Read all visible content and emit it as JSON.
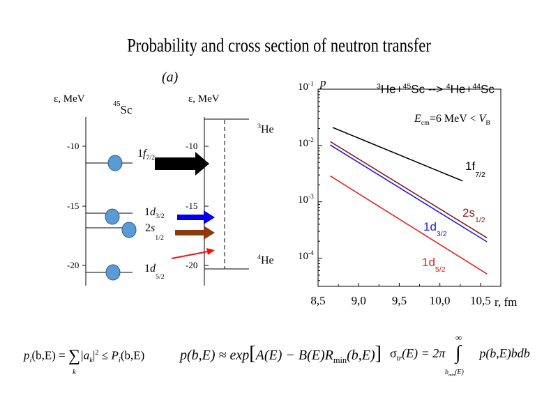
{
  "title": "Probability and cross section of neutron transfer",
  "panel_label": "(a)",
  "left_diagram": {
    "axis_label": "ε, MeV",
    "nucleus_pre": "45",
    "nucleus": "Sc",
    "ticks": [
      "-10",
      "-15",
      "-20"
    ]
  },
  "right_diagram": {
    "axis_label": "ε, MeV",
    "ticks": [
      "-10",
      "-15",
      "-20"
    ],
    "top_level_pre": "3",
    "top_level": "He",
    "bottom_level_pre": "4",
    "bottom_level": "He"
  },
  "levels": [
    {
      "pre": "1",
      "letter": "f",
      "sub": "7/2",
      "arrow_color": "#000000"
    },
    {
      "pre": "1",
      "letter": "d",
      "sub": "3/2",
      "arrow_color": "#0000ee"
    },
    {
      "pre": "2",
      "letter": "s",
      "sub": "1/2",
      "arrow_color": "#8b3a0e"
    },
    {
      "pre": "1",
      "letter": "d",
      "sub": "5/2",
      "arrow_color": "#ee1111"
    }
  ],
  "colors": {
    "ball": "#5b9bd5",
    "f72": "#000000",
    "s12": "#8b1a1a",
    "d32": "#1a1ae6",
    "d52": "#e62020"
  },
  "chart_data": {
    "type": "line",
    "xlabel": "r, fm",
    "ylabel": "p",
    "yscale": "log",
    "xlim": [
      8.5,
      10.75
    ],
    "ylim_log10": [
      -4.5,
      -1
    ],
    "x_tick_labels": [
      "8,5",
      "9,0",
      "9,5",
      "10,0",
      "10,5"
    ],
    "x_ticks": [
      8.5,
      9.0,
      9.5,
      10.0,
      10.5
    ],
    "y_ticks": [
      {
        "base": "10",
        "exp": "-1",
        "log10": -1
      },
      {
        "base": "10",
        "exp": "-2",
        "log10": -2
      },
      {
        "base": "10",
        "exp": "-3",
        "log10": -3
      },
      {
        "base": "10",
        "exp": "-4",
        "log10": -4
      }
    ],
    "reaction": {
      "pre1": "3",
      "a": "He+",
      "pre2": "45",
      "b": "Sc --> ",
      "pre3": "4",
      "c": "He+",
      "pre4": "44",
      "d": "Sc"
    },
    "energy_annotation": {
      "E": "E",
      "sub": "cm",
      "mid": "=6 MeV < ",
      "V": "V",
      "vsub": "B"
    },
    "series": [
      {
        "name": "1f7/2",
        "label": "1f",
        "label_sub": "7/2",
        "color": "#000000",
        "x": [
          8.68,
          10.28
        ],
        "log10_y": [
          -1.68,
          -2.63
        ]
      },
      {
        "name": "2s1/2",
        "label": "2s",
        "label_sub": "1/2",
        "color": "#8b1a1a",
        "x": [
          8.65,
          10.58
        ],
        "log10_y": [
          -1.93,
          -3.64
        ]
      },
      {
        "name": "1d3/2",
        "label": "1d",
        "label_sub": "3/2",
        "color": "#1a1ae6",
        "x": [
          8.65,
          10.58
        ],
        "log10_y": [
          -1.99,
          -3.71
        ]
      },
      {
        "name": "1d5/2",
        "label": "1d",
        "label_sub": "5/2",
        "color": "#e62020",
        "x": [
          8.65,
          10.58
        ],
        "log10_y": [
          -2.54,
          -4.28
        ]
      }
    ]
  },
  "formulas": {
    "f1": {
      "lhs_p": "p",
      "lhs_i": "i",
      "lhs_args": "(b,E) = ",
      "sum": "∑",
      "sum_k": "k",
      "mid": "|a",
      "mid_k": "k",
      "mid_end": "|",
      "sq": "2",
      "le": " ≤ ",
      "rhs_P": "P",
      "rhs_i": "i",
      "rhs_args": "(b,E)"
    },
    "f2": {
      "lhs": "p(b,E) ≈ exp",
      "lb": "[",
      "body": "A(E) − B(E)R",
      "sub": "min",
      "tail": "(b,E)",
      "rb": "]"
    },
    "f3": {
      "sigma": "σ",
      "sub": "tr",
      "lhs_tail": "(E) = 2π",
      "upper": "∞",
      "integral": "∫",
      "lower": "b",
      "lower_sub": "min",
      "lower_tail": "(E)",
      "integrand": "p(b,E)bdb"
    }
  }
}
